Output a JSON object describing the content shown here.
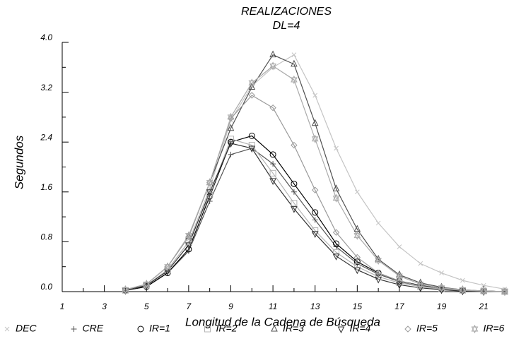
{
  "chart_data": {
    "type": "line",
    "title": "REALIZACIONES",
    "subtitle": "DL=4",
    "x_label": "Longitud de la Cadena de Búsqueda",
    "y_label": "Segundos",
    "x": [
      4,
      5,
      6,
      7,
      8,
      9,
      10,
      11,
      12,
      13,
      14,
      15,
      16,
      17,
      18,
      19,
      20,
      21,
      22
    ],
    "xlim": [
      1,
      22
    ],
    "xticks": [
      1,
      3,
      5,
      7,
      9,
      11,
      13,
      15,
      17,
      19,
      21
    ],
    "xminorticks": [
      2,
      4,
      6,
      8,
      10,
      12,
      14,
      16,
      18,
      20,
      22
    ],
    "ylim": [
      0,
      4.0
    ],
    "yticks": [
      {
        "value": 0,
        "label": "0.0"
      },
      {
        "value": 0.8,
        "label": "0.8"
      },
      {
        "value": 1.6,
        "label": "1.6"
      },
      {
        "value": 2.4,
        "label": "2.4"
      },
      {
        "value": 3.2,
        "label": "3.2"
      },
      {
        "value": 4.0,
        "label": "4.0"
      }
    ],
    "yminorticks": [
      0.4,
      1.2,
      2.0,
      2.8,
      3.6
    ],
    "legend": "bottom",
    "series": [
      {
        "name": "DEC",
        "color": "#c4c4c4",
        "marker": "x",
        "values": [
          0.02,
          0.1,
          0.35,
          0.8,
          1.65,
          2.75,
          3.3,
          3.6,
          3.8,
          3.15,
          2.3,
          1.6,
          1.1,
          0.72,
          0.45,
          0.3,
          0.18,
          0.1,
          0.04
        ]
      },
      {
        "name": "CRE",
        "color": "#555555",
        "marker": "plus",
        "values": [
          0.02,
          0.08,
          0.3,
          0.65,
          1.45,
          2.2,
          2.3,
          2.05,
          1.6,
          1.15,
          0.72,
          0.45,
          0.28,
          0.16,
          0.09,
          0.05,
          0.02,
          0.01,
          0
        ]
      },
      {
        "name": "IR=1",
        "color": "#000000",
        "marker": "circle",
        "values": [
          0.02,
          0.08,
          0.3,
          0.68,
          1.53,
          2.4,
          2.5,
          2.2,
          1.73,
          1.27,
          0.77,
          0.48,
          0.3,
          0.17,
          0.1,
          0.05,
          0.02,
          0.01,
          0
        ]
      },
      {
        "name": "IR=2",
        "color": "#b4b4b4",
        "marker": "square",
        "values": [
          0.02,
          0.1,
          0.35,
          0.8,
          1.55,
          2.45,
          2.35,
          1.9,
          1.42,
          0.98,
          0.63,
          0.4,
          0.24,
          0.14,
          0.08,
          0.04,
          0.02,
          0.01,
          0
        ]
      },
      {
        "name": "IR=3",
        "color": "#505050",
        "marker": "triangle",
        "values": [
          0.03,
          0.12,
          0.4,
          0.88,
          1.75,
          2.62,
          3.28,
          3.8,
          3.65,
          2.7,
          1.65,
          1.0,
          0.52,
          0.27,
          0.14,
          0.07,
          0.03,
          0.01,
          0
        ]
      },
      {
        "name": "IR=4",
        "color": "#333333",
        "marker": "triangle-down",
        "values": [
          0.02,
          0.1,
          0.33,
          0.75,
          1.6,
          2.38,
          2.3,
          1.78,
          1.33,
          0.93,
          0.57,
          0.35,
          0.2,
          0.11,
          0.06,
          0.03,
          0.01,
          0,
          0
        ]
      },
      {
        "name": "IR=5",
        "color": "#9a9a9a",
        "marker": "diamond",
        "values": [
          0.03,
          0.12,
          0.4,
          0.88,
          1.75,
          2.78,
          3.15,
          2.95,
          2.35,
          1.63,
          0.95,
          0.55,
          0.3,
          0.17,
          0.09,
          0.05,
          0.02,
          0.01,
          0
        ]
      },
      {
        "name": "IR=6",
        "color": "#aaaaaa",
        "marker": "star",
        "values": [
          0.03,
          0.12,
          0.4,
          0.9,
          1.75,
          2.8,
          3.35,
          3.62,
          3.4,
          2.45,
          1.5,
          0.9,
          0.5,
          0.25,
          0.12,
          0.06,
          0.03,
          0.01,
          0
        ]
      }
    ]
  }
}
